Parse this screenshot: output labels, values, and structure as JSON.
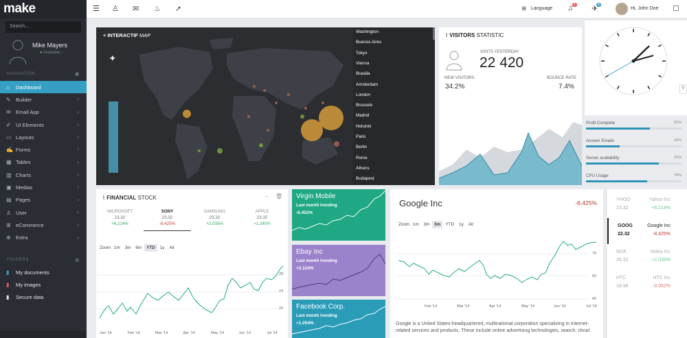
{
  "brand": {
    "logo": "make"
  },
  "search": {
    "placeholder": "Search..."
  },
  "user": {
    "name": "Mike Mayers",
    "status": "Available"
  },
  "sidebar": {
    "nav_title": "NAVIGATION",
    "items": [
      {
        "label": "Dashboard",
        "icon": "home-icon",
        "active": true
      },
      {
        "label": "Builder",
        "icon": "wrench-icon"
      },
      {
        "label": "Email App",
        "icon": "envelope-icon"
      },
      {
        "label": "UI Elements",
        "icon": "pencil-icon"
      },
      {
        "label": "Layouts",
        "icon": "layout-icon"
      },
      {
        "label": "Forms",
        "icon": "edit-icon"
      },
      {
        "label": "Tables",
        "icon": "table-icon"
      },
      {
        "label": "Charts",
        "icon": "chart-icon"
      },
      {
        "label": "Medias",
        "icon": "picture-icon"
      },
      {
        "label": "Pages",
        "icon": "file-icon"
      },
      {
        "label": "User",
        "icon": "user-icon"
      },
      {
        "label": "eCommerce",
        "icon": "cart-icon"
      },
      {
        "label": "Extra",
        "icon": "plus-icon"
      }
    ],
    "folders_title": "FOLDERS",
    "folders": [
      {
        "label": "My documents",
        "color": "#36a0c4"
      },
      {
        "label": "My images",
        "color": "#e05555"
      },
      {
        "label": "Secure data",
        "color": "#e3e5e8"
      }
    ]
  },
  "topbar": {
    "language": "Language",
    "notif_count": "6",
    "msg_count": "8",
    "greeting": "Hi, John Doe"
  },
  "map": {
    "title_bold": "INTERACTIF",
    "title_rest": " MAP",
    "cities": [
      "Washington",
      "Buenos Aires",
      "Tokyo",
      "Vienna",
      "Brasilia",
      "Amsterdam",
      "London",
      "Brussels",
      "Madrid",
      "Helsinki",
      "Paris",
      "Berlin",
      "Rome",
      "Athens",
      "Budapest"
    ]
  },
  "visitors": {
    "title_bold": "VISITORS",
    "title_rest": " STATISTIC",
    "yesterday_label": "VISITS YESTERDAY",
    "yesterday_value": "22 420",
    "new_label": "NEW VISITORS",
    "new_value": "34.2%",
    "bounce_label": "BOUNCE RATE",
    "bounce_value": "7.4%"
  },
  "progress": [
    {
      "label": "Profil Complete",
      "value": "82%",
      "level": 0.82
    },
    {
      "label": "Answer Emails",
      "value": "43%",
      "level": 0.43
    },
    {
      "label": "Server availability",
      "value": "93%",
      "level": 0.93
    },
    {
      "label": "CPU Usage",
      "value": "78%",
      "level": 0.78
    }
  ],
  "financial": {
    "title_bold": "FINANCIAL",
    "title_rest": " STOCK",
    "stocks": [
      {
        "name": "MICROSOFT",
        "price": "23.32",
        "change": "+6,214%",
        "up": true,
        "active": false
      },
      {
        "name": "SONY",
        "price": "23.32",
        "change": "-8,425%",
        "up": false,
        "active": true
      },
      {
        "name": "SAMSUNG",
        "price": "23.32",
        "change": "+2,035%",
        "up": true,
        "active": false
      },
      {
        "name": "APPLE",
        "price": "23.32",
        "change": "+1,245%",
        "up": true,
        "active": false
      }
    ],
    "zoom_label": "Zoom",
    "zoom": [
      "1m",
      "3m",
      "6m",
      "YTD",
      "1y",
      "All"
    ],
    "zoom_selected": "YTD",
    "x_ticks": [
      "Jan '14",
      "Feb '14",
      "Mar '14",
      "Apr '14",
      "May '14",
      "Jun '14",
      "Jul '14"
    ],
    "y_ticks": [
      "28",
      "24",
      "20"
    ]
  },
  "tiles": [
    {
      "title": "Virgin Mobile",
      "sub": "Last month trending",
      "value": "-8.452%",
      "color": "#1fa883"
    },
    {
      "title": "Ebay Inc",
      "sub": "Last month trending",
      "value": "+2.124%",
      "color": "#9b83cc"
    },
    {
      "title": "Facebook Corp.",
      "sub": "Last month trending",
      "value": "+1.054%",
      "color": "#2b9cb8"
    }
  ],
  "google": {
    "title": "Google Inc",
    "change": "-8,425%",
    "zoom_label": "Zoom",
    "zoom": [
      "1m",
      "3m",
      "6m",
      "YTD",
      "1y",
      "All"
    ],
    "zoom_selected": "6m",
    "x_ticks": [
      "Feb '14",
      "Mar '14",
      "Apr '14",
      "May '14",
      "Jun '14",
      "Jul '14"
    ],
    "y_ticks": [
      "70",
      "65",
      "60"
    ],
    "description": "Google is a United States-headquartered, multinational corporation specializing in Internet-related services and products. These include online advertising technologies, search, cloud"
  },
  "sidelist": [
    {
      "ticker": "YHOO",
      "price": "23.32",
      "name": "Yahoo Inc",
      "change": "+6,214%",
      "up": true,
      "active": false
    },
    {
      "ticker": "GOOG",
      "price": "22.32",
      "name": "Google Inc",
      "change": "-8,425%",
      "up": false,
      "active": true
    },
    {
      "ticker": "NOK",
      "price": "25.32",
      "name": "Nokia Inc",
      "change": "+2,035%",
      "up": true,
      "active": false
    },
    {
      "ticker": "HTC",
      "price": "18.96",
      "name": "HTC Inc",
      "change": "-3.052%",
      "up": false,
      "active": false
    }
  ]
}
